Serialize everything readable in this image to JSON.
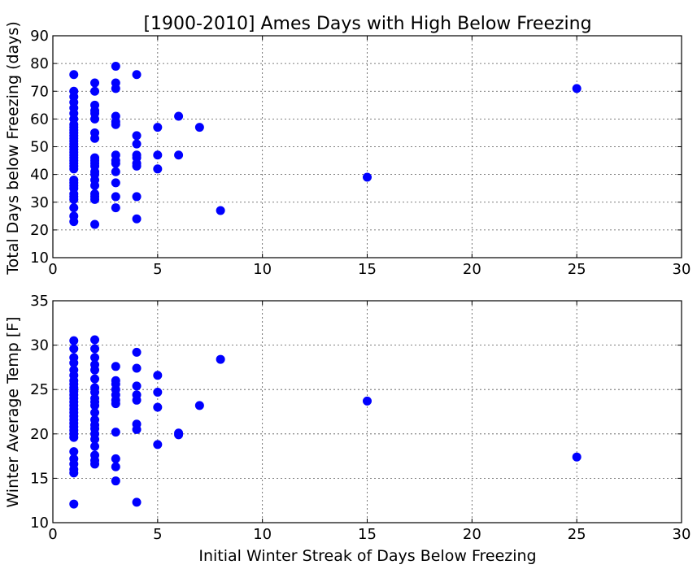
{
  "chart_data": [
    {
      "type": "scatter",
      "title": "[1900-2010] Ames Days with High Below Freezing",
      "xlabel": "",
      "ylabel": "Total Days below Freezing (days)",
      "xlim": [
        0,
        30
      ],
      "ylim": [
        10,
        90
      ],
      "xticks": [
        0,
        5,
        10,
        15,
        20,
        25,
        30
      ],
      "yticks": [
        10,
        20,
        30,
        40,
        50,
        60,
        70,
        80,
        90
      ],
      "grid": true,
      "marker_color": "#0000ff",
      "points": [
        [
          1,
          76
        ],
        [
          1,
          70
        ],
        [
          1,
          68
        ],
        [
          1,
          66
        ],
        [
          1,
          64
        ],
        [
          1,
          62
        ],
        [
          1,
          60
        ],
        [
          1,
          58
        ],
        [
          1,
          57
        ],
        [
          1,
          56
        ],
        [
          1,
          55
        ],
        [
          1,
          54
        ],
        [
          1,
          53
        ],
        [
          1,
          52
        ],
        [
          1,
          51
        ],
        [
          1,
          50
        ],
        [
          1,
          49
        ],
        [
          1,
          48
        ],
        [
          1,
          47
        ],
        [
          1,
          46
        ],
        [
          1,
          45
        ],
        [
          1,
          44
        ],
        [
          1,
          43
        ],
        [
          1,
          42
        ],
        [
          1,
          38
        ],
        [
          1,
          37
        ],
        [
          1,
          36
        ],
        [
          1,
          35
        ],
        [
          1,
          33
        ],
        [
          1,
          32
        ],
        [
          1,
          31
        ],
        [
          1,
          28
        ],
        [
          1,
          25
        ],
        [
          1,
          23
        ],
        [
          2,
          73
        ],
        [
          2,
          70
        ],
        [
          2,
          65
        ],
        [
          2,
          63
        ],
        [
          2,
          62
        ],
        [
          2,
          60
        ],
        [
          2,
          55
        ],
        [
          2,
          53
        ],
        [
          2,
          46
        ],
        [
          2,
          45
        ],
        [
          2,
          44
        ],
        [
          2,
          43
        ],
        [
          2,
          41
        ],
        [
          2,
          40
        ],
        [
          2,
          38
        ],
        [
          2,
          36
        ],
        [
          2,
          33
        ],
        [
          2,
          32
        ],
        [
          2,
          31
        ],
        [
          2,
          22
        ],
        [
          3,
          79
        ],
        [
          3,
          73
        ],
        [
          3,
          71
        ],
        [
          3,
          61
        ],
        [
          3,
          59
        ],
        [
          3,
          58
        ],
        [
          3,
          47
        ],
        [
          3,
          45
        ],
        [
          3,
          44
        ],
        [
          3,
          41
        ],
        [
          3,
          37
        ],
        [
          3,
          32
        ],
        [
          3,
          28
        ],
        [
          4,
          76
        ],
        [
          4,
          54
        ],
        [
          4,
          51
        ],
        [
          4,
          47
        ],
        [
          4,
          46
        ],
        [
          4,
          44
        ],
        [
          4,
          43
        ],
        [
          4,
          32
        ],
        [
          4,
          24
        ],
        [
          5,
          57
        ],
        [
          5,
          47
        ],
        [
          5,
          42
        ],
        [
          6,
          61
        ],
        [
          6,
          47
        ],
        [
          7,
          57
        ],
        [
          8,
          27
        ],
        [
          15,
          39
        ],
        [
          25,
          71
        ]
      ]
    },
    {
      "type": "scatter",
      "title": "",
      "xlabel": "Initial Winter Streak of Days Below Freezing",
      "ylabel": "Winter Average Temp [F]",
      "xlim": [
        0,
        30
      ],
      "ylim": [
        10,
        35
      ],
      "xticks": [
        0,
        5,
        10,
        15,
        20,
        25,
        30
      ],
      "yticks": [
        10,
        15,
        20,
        25,
        30,
        35
      ],
      "grid": true,
      "marker_color": "#0000ff",
      "points": [
        [
          1,
          30.5
        ],
        [
          1,
          29.6
        ],
        [
          1,
          28.6
        ],
        [
          1,
          28.0
        ],
        [
          1,
          27.2
        ],
        [
          1,
          26.6
        ],
        [
          1,
          26.0
        ],
        [
          1,
          25.6
        ],
        [
          1,
          25.2
        ],
        [
          1,
          24.8
        ],
        [
          1,
          24.4
        ],
        [
          1,
          24.0
        ],
        [
          1,
          23.6
        ],
        [
          1,
          23.2
        ],
        [
          1,
          22.8
        ],
        [
          1,
          22.4
        ],
        [
          1,
          22.0
        ],
        [
          1,
          21.6
        ],
        [
          1,
          21.2
        ],
        [
          1,
          20.8
        ],
        [
          1,
          20.4
        ],
        [
          1,
          20.0
        ],
        [
          1,
          19.6
        ],
        [
          1,
          18.0
        ],
        [
          1,
          17.2
        ],
        [
          1,
          16.6
        ],
        [
          1,
          16.0
        ],
        [
          1,
          15.6
        ],
        [
          1,
          12.1
        ],
        [
          2,
          30.6
        ],
        [
          2,
          29.6
        ],
        [
          2,
          28.6
        ],
        [
          2,
          27.8
        ],
        [
          2,
          27.2
        ],
        [
          2,
          26.2
        ],
        [
          2,
          25.2
        ],
        [
          2,
          24.7
        ],
        [
          2,
          24.0
        ],
        [
          2,
          23.6
        ],
        [
          2,
          23.2
        ],
        [
          2,
          22.4
        ],
        [
          2,
          21.6
        ],
        [
          2,
          21.0
        ],
        [
          2,
          20.6
        ],
        [
          2,
          20.0
        ],
        [
          2,
          19.4
        ],
        [
          2,
          18.6
        ],
        [
          2,
          17.6
        ],
        [
          2,
          17.0
        ],
        [
          2,
          16.6
        ],
        [
          3,
          27.6
        ],
        [
          3,
          26.0
        ],
        [
          3,
          25.6
        ],
        [
          3,
          25.0
        ],
        [
          3,
          24.4
        ],
        [
          3,
          23.8
        ],
        [
          3,
          23.4
        ],
        [
          3,
          20.2
        ],
        [
          3,
          17.2
        ],
        [
          3,
          16.3
        ],
        [
          3,
          14.7
        ],
        [
          4,
          29.2
        ],
        [
          4,
          27.4
        ],
        [
          4,
          25.4
        ],
        [
          4,
          24.4
        ],
        [
          4,
          23.8
        ],
        [
          4,
          21.1
        ],
        [
          4,
          20.5
        ],
        [
          4,
          12.3
        ],
        [
          5,
          26.6
        ],
        [
          5,
          24.7
        ],
        [
          5,
          23.0
        ],
        [
          5,
          18.8
        ],
        [
          6,
          20.1
        ],
        [
          6,
          19.9
        ],
        [
          7,
          23.2
        ],
        [
          8,
          28.4
        ],
        [
          15,
          23.7
        ],
        [
          25,
          17.4
        ]
      ]
    }
  ]
}
